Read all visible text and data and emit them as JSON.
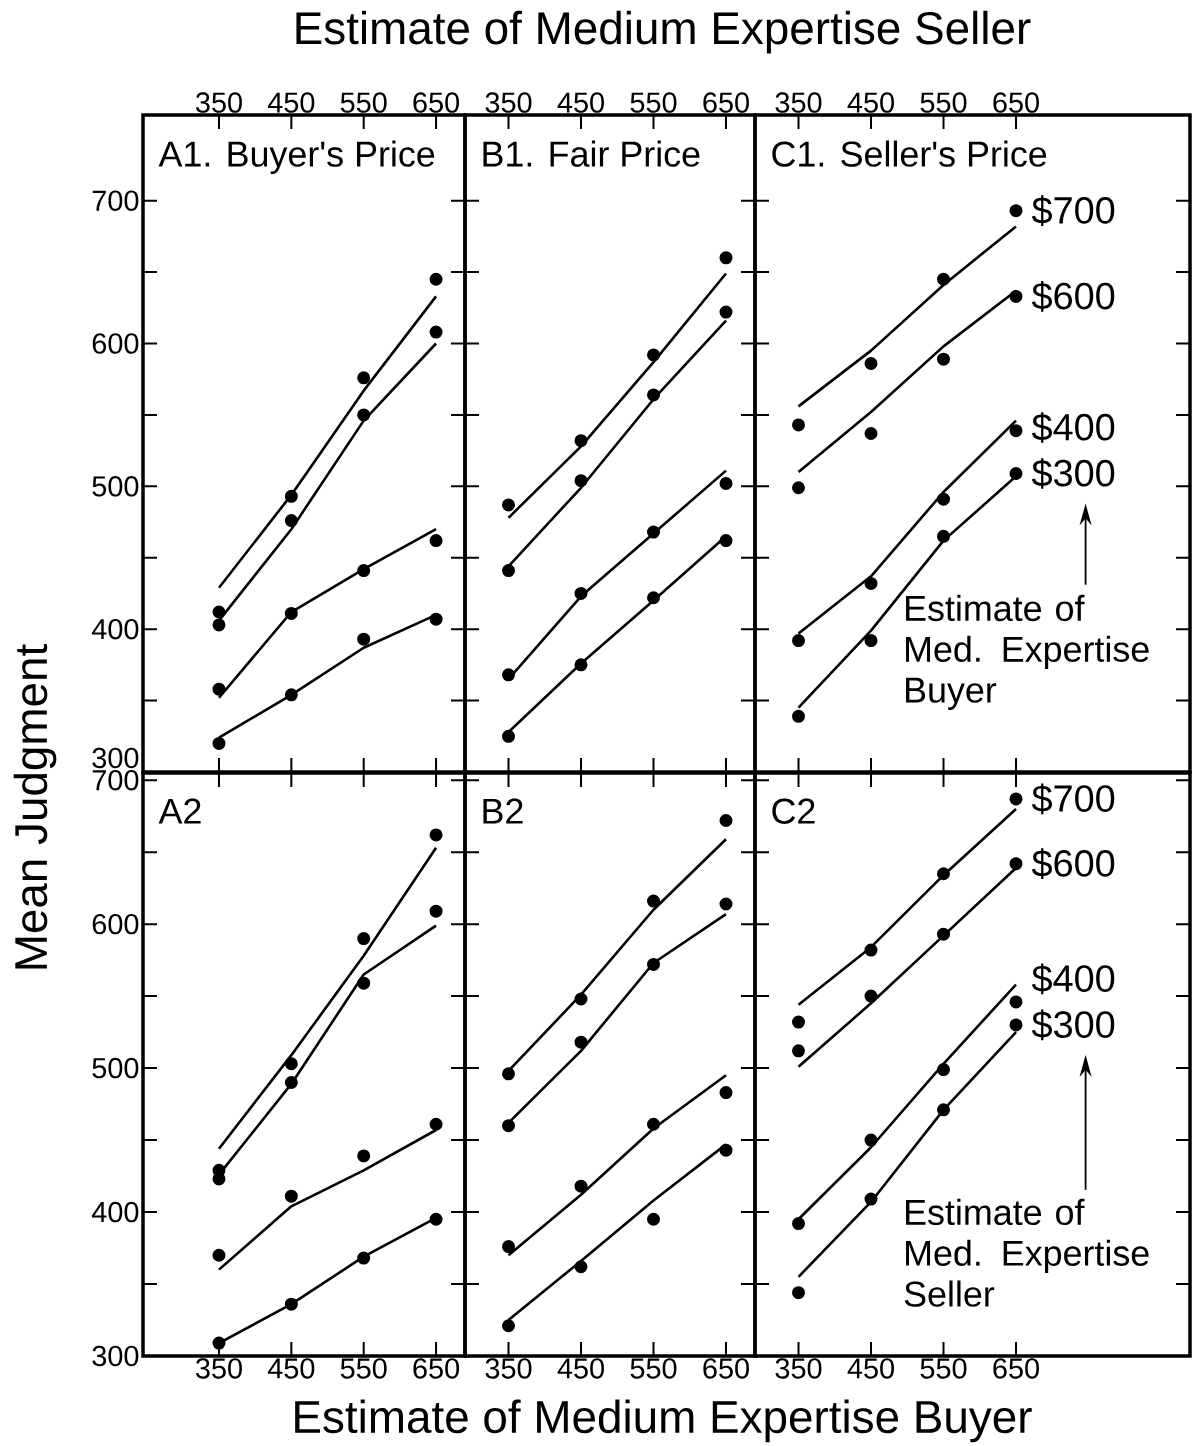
{
  "chart_data": [
    {
      "type": "scatter",
      "title": "A1. Buyer's Price",
      "marker": "circle",
      "x": [
        350,
        450,
        550,
        650
      ],
      "xlim": [
        245,
        690
      ],
      "xticks": [
        350,
        450,
        550,
        650
      ],
      "ylim": [
        300,
        760
      ],
      "yticks": [
        300,
        {
          "value": 350,
          "label": null
        },
        400,
        {
          "value": 450,
          "label": null
        },
        500,
        {
          "value": 550,
          "label": null
        },
        600,
        {
          "value": 650,
          "label": null
        },
        700
      ],
      "series": [
        {
          "color": "#000000",
          "values": [
            412,
            493,
            576,
            645
          ]
        },
        {
          "color": "#000000",
          "values": [
            403,
            476,
            550,
            608
          ]
        },
        {
          "color": "#000000",
          "values": [
            358,
            411,
            441,
            462
          ]
        },
        {
          "color": "#000000",
          "values": [
            320,
            354,
            393,
            407
          ]
        },
        {
          "type": "line",
          "marker": "none",
          "color": "#000000",
          "values": [
            429,
            494,
            567,
            633
          ]
        },
        {
          "type": "line",
          "marker": "none",
          "color": "#000000",
          "values": [
            406,
            470,
            546,
            600
          ]
        },
        {
          "type": "line",
          "marker": "none",
          "color": "#000000",
          "values": [
            352,
            412,
            442,
            470
          ]
        },
        {
          "type": "line",
          "marker": "none",
          "color": "#000000",
          "values": [
            324,
            354,
            387,
            410
          ]
        }
      ]
    },
    {
      "type": "scatter",
      "title": "B1. Fair Price",
      "marker": "circle",
      "x": [
        350,
        450,
        550,
        650
      ],
      "xlim": [
        290,
        690
      ],
      "xticks": [
        350,
        450,
        550,
        650
      ],
      "xlabel": "Estimate of Medium Expertise Seller",
      "tick_labels": "x",
      "ylim": [
        300,
        760
      ],
      "yticks": [
        300,
        350,
        400,
        450,
        500,
        550,
        600,
        650,
        700
      ],
      "series": [
        {
          "color": "#000000",
          "values": [
            487,
            532,
            592,
            660
          ]
        },
        {
          "color": "#000000",
          "values": [
            441,
            504,
            564,
            622
          ]
        },
        {
          "color": "#000000",
          "values": [
            368,
            425,
            468,
            502
          ]
        },
        {
          "color": "#000000",
          "values": [
            325,
            375,
            422,
            462
          ]
        },
        {
          "type": "line",
          "marker": "none",
          "color": "#000000",
          "values": [
            478,
            528,
            587,
            649
          ]
        },
        {
          "type": "line",
          "marker": "none",
          "color": "#000000",
          "values": [
            444,
            499,
            561,
            616
          ]
        },
        {
          "type": "line",
          "marker": "none",
          "color": "#000000",
          "values": [
            365,
            423,
            467,
            511
          ]
        },
        {
          "type": "line",
          "marker": "none",
          "color": "#000000",
          "values": [
            328,
            376,
            420,
            465
          ]
        }
      ]
    },
    {
      "type": "scatter",
      "title": "C1. Seller's Price",
      "marker": "circle",
      "x": [
        350,
        450,
        550,
        650
      ],
      "xlim": [
        290,
        890
      ],
      "xticks": [
        350,
        450,
        550,
        650
      ],
      "tick_labels": "x",
      "ylim": [
        300,
        760
      ],
      "yticks": [
        300,
        350,
        400,
        450,
        500,
        550,
        600,
        650,
        700
      ],
      "annotations": [
        "Estimate of Med. Expertise Buyer"
      ],
      "legend": "right",
      "series": [
        {
          "name": "$700",
          "color": "#000000",
          "values": [
            543,
            586,
            645,
            693
          ]
        },
        {
          "name": "$600",
          "color": "#000000",
          "values": [
            499,
            537,
            589,
            633
          ]
        },
        {
          "name": "$400",
          "color": "#000000",
          "values": [
            392,
            432,
            491,
            539
          ]
        },
        {
          "name": "$300",
          "color": "#000000",
          "values": [
            339,
            392,
            465,
            509
          ]
        },
        {
          "type": "line",
          "marker": "none",
          "color": "#000000",
          "values": [
            556,
            595,
            641,
            682
          ]
        },
        {
          "type": "line",
          "marker": "none",
          "color": "#000000",
          "values": [
            510,
            552,
            598,
            637
          ]
        },
        {
          "type": "line",
          "marker": "none",
          "color": "#000000",
          "values": [
            397,
            437,
            496,
            546
          ]
        },
        {
          "type": "line",
          "marker": "none",
          "color": "#000000",
          "values": [
            345,
            399,
            462,
            507
          ]
        }
      ]
    },
    {
      "type": "scatter",
      "title": "A2",
      "marker": "circle",
      "x": [
        350,
        450,
        550,
        650
      ],
      "xlim": [
        245,
        690
      ],
      "xticks": [
        350,
        450,
        550,
        650
      ],
      "ylabel": "Mean Judgment",
      "ylim": [
        300,
        705
      ],
      "yticks": [
        300,
        {
          "value": 350,
          "label": null
        },
        400,
        {
          "value": 450,
          "label": null
        },
        500,
        {
          "value": 550,
          "label": null
        },
        600,
        {
          "value": 650,
          "label": null
        },
        700
      ],
      "series": [
        {
          "color": "#000000",
          "values": [
            429,
            503,
            590,
            662
          ]
        },
        {
          "color": "#000000",
          "values": [
            423,
            490,
            559,
            609
          ]
        },
        {
          "color": "#000000",
          "values": [
            370,
            411,
            439,
            461
          ]
        },
        {
          "color": "#000000",
          "values": [
            309,
            336,
            368,
            395
          ]
        },
        {
          "type": "line",
          "marker": "none",
          "color": "#000000",
          "values": [
            444,
            509,
            578,
            653
          ]
        },
        {
          "type": "line",
          "marker": "none",
          "color": "#000000",
          "values": [
            426,
            489,
            565,
            599
          ]
        },
        {
          "type": "line",
          "marker": "none",
          "color": "#000000",
          "values": [
            360,
            404,
            429,
            457
          ]
        },
        {
          "type": "line",
          "marker": "none",
          "color": "#000000",
          "values": [
            309,
            336,
            369,
            396
          ]
        }
      ]
    },
    {
      "type": "scatter",
      "title": "B2",
      "marker": "circle",
      "x": [
        350,
        450,
        550,
        650
      ],
      "xlim": [
        290,
        690
      ],
      "xticks": [
        350,
        450,
        550,
        650
      ],
      "xlabel": "Estimate of Medium Expertise Buyer",
      "tick_labels": "x",
      "ylim": [
        300,
        705
      ],
      "yticks": [
        300,
        350,
        400,
        450,
        500,
        550,
        600,
        650,
        700
      ],
      "series": [
        {
          "color": "#000000",
          "values": [
            496,
            548,
            616,
            672
          ]
        },
        {
          "color": "#000000",
          "values": [
            460,
            518,
            572,
            614
          ]
        },
        {
          "color": "#000000",
          "values": [
            376,
            418,
            461,
            483
          ]
        },
        {
          "color": "#000000",
          "values": [
            321,
            362,
            395,
            443
          ]
        },
        {
          "type": "line",
          "marker": "none",
          "color": "#000000",
          "values": [
            498,
            551,
            610,
            659
          ]
        },
        {
          "type": "line",
          "marker": "none",
          "color": "#000000",
          "values": [
            462,
            512,
            573,
            607
          ]
        },
        {
          "type": "line",
          "marker": "none",
          "color": "#000000",
          "values": [
            370,
            412,
            458,
            495
          ]
        },
        {
          "type": "line",
          "marker": "none",
          "color": "#000000",
          "values": [
            325,
            366,
            408,
            447
          ]
        }
      ]
    },
    {
      "type": "scatter",
      "title": "C2",
      "marker": "circle",
      "x": [
        350,
        450,
        550,
        650
      ],
      "xlim": [
        290,
        890
      ],
      "xticks": [
        350,
        450,
        550,
        650
      ],
      "tick_labels": "x",
      "ylim": [
        300,
        705
      ],
      "yticks": [
        300,
        350,
        400,
        450,
        500,
        550,
        600,
        650,
        700
      ],
      "annotations": [
        "Estimate of Med. Expertise Seller"
      ],
      "legend": "right",
      "series": [
        {
          "name": "$700",
          "color": "#000000",
          "values": [
            532,
            582,
            635,
            687
          ]
        },
        {
          "name": "$600",
          "color": "#000000",
          "values": [
            512,
            550,
            593,
            642
          ]
        },
        {
          "name": "$400",
          "color": "#000000",
          "values": [
            392,
            450,
            499,
            546
          ]
        },
        {
          "name": "$300",
          "color": "#000000",
          "values": [
            344,
            409,
            471,
            530
          ]
        },
        {
          "type": "line",
          "marker": "none",
          "color": "#000000",
          "values": [
            544,
            584,
            634,
            680
          ]
        },
        {
          "type": "line",
          "marker": "none",
          "color": "#000000",
          "values": [
            501,
            545,
            592,
            639
          ]
        },
        {
          "type": "line",
          "marker": "none",
          "color": "#000000",
          "values": [
            395,
            445,
            503,
            558
          ]
        },
        {
          "type": "line",
          "marker": "none",
          "color": "#000000",
          "values": [
            355,
            407,
            471,
            525
          ]
        }
      ]
    }
  ]
}
